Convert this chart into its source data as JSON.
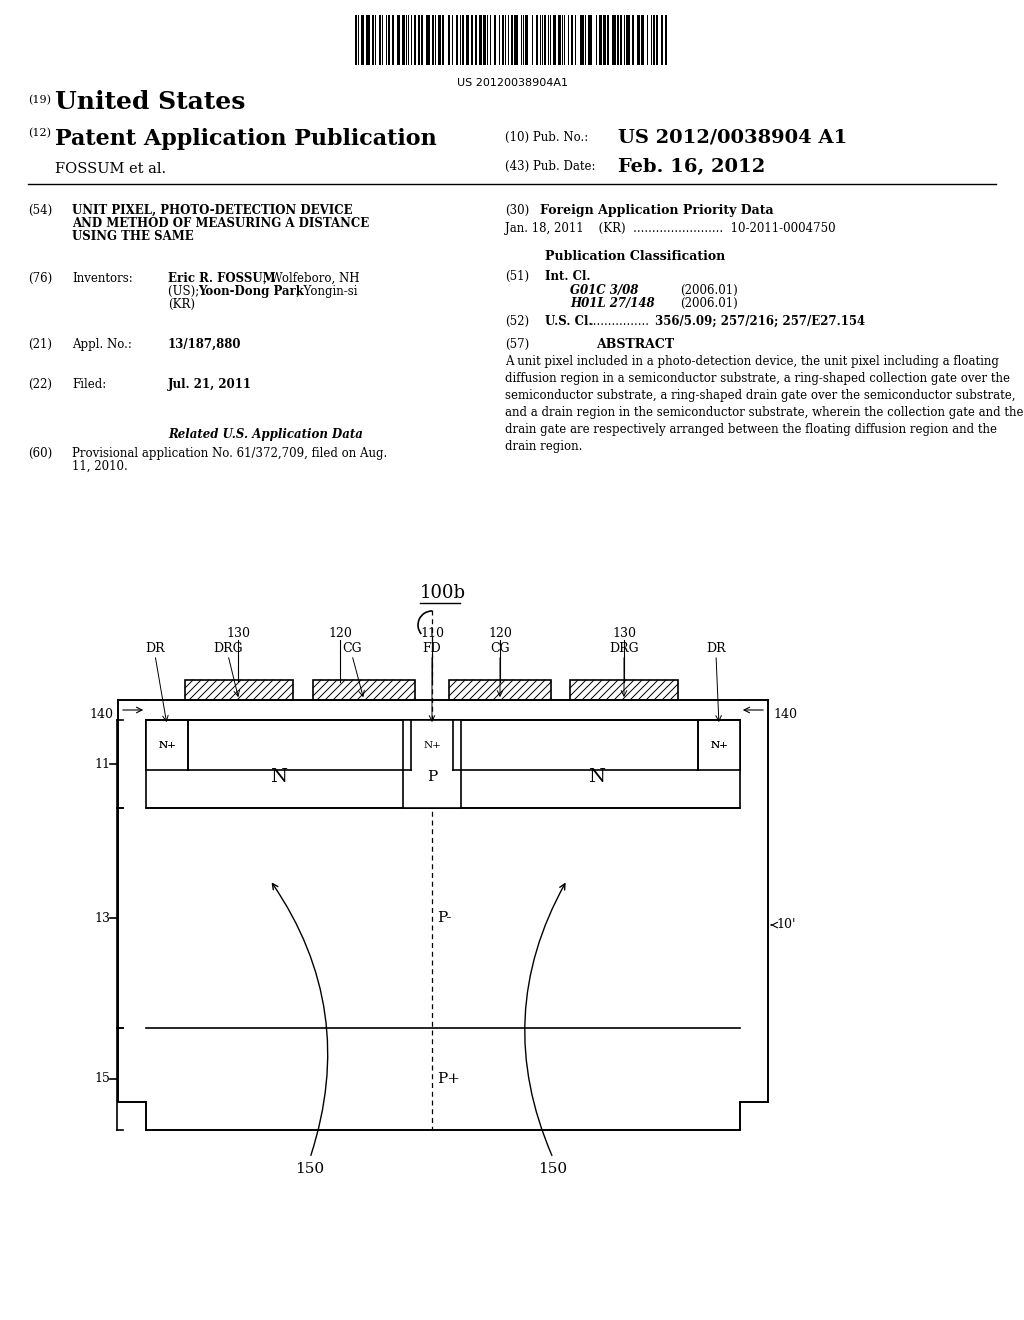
{
  "bg_color": "#ffffff",
  "barcode_text": "US 20120038904A1",
  "header_line1_num": "(19)",
  "header_line1_text": "United States",
  "header_line2_num": "(12)",
  "header_line2_text": "Patent Application Publication",
  "header_line2_right_num": "(10)",
  "header_line2_right_label": "Pub. No.:",
  "header_line2_right_value": "US 2012/0038904 A1",
  "header_line3_left": "FOSSUM et al.",
  "header_line3_right_num": "(43)",
  "header_line3_right_label": "Pub. Date:",
  "header_line3_right_value": "Feb. 16, 2012",
  "field54_num": "(54)",
  "field54_line1": "UNIT PIXEL, PHOTO-DETECTION DEVICE",
  "field54_line2": "AND METHOD OF MEASURING A DISTANCE",
  "field54_line3": "USING THE SAME",
  "field30_num": "(30)",
  "field30_label": "Foreign Application Priority Data",
  "field30_data": "Jan. 18, 2011    (KR)  ........................  10-2011-0004750",
  "field_pub_class_title": "Publication Classification",
  "field51_num": "(51)",
  "field51_label": "Int. Cl.",
  "field51_data1_italic": "G01C 3/08",
  "field51_data1_year": "(2006.01)",
  "field51_data2_italic": "H01L 27/148",
  "field51_data2_year": "(2006.01)",
  "field52_num": "(52)",
  "field52_label": "U.S. Cl.",
  "field52_dots": "................",
  "field52_data": "356/5.09; 257/216; 257/E27.154",
  "field57_num": "(57)",
  "field57_label": "ABSTRACT",
  "abstract_text": "A unit pixel included in a photo-detection device, the unit pixel including a floating diffusion region in a semiconductor substrate, a ring-shaped collection gate over the semiconductor substrate, a ring-shaped drain gate over the semiconductor substrate, and a drain region in the semiconductor substrate, wherein the collection gate and the drain gate are respectively arranged between the floating diffusion region and the drain region.",
  "field76_num": "(76)",
  "field76_label": "Inventors:",
  "field76_bold1": "Eric R. FOSSUM",
  "field76_normal1": ", Wolfeboro, NH",
  "field76_line2a": "(US); ",
  "field76_bold2": "Yoon-Dong Park",
  "field76_normal2": ", Yongin-si",
  "field76_line3": "(KR)",
  "field21_num": "(21)",
  "field21_label": "Appl. No.:",
  "field21_data": "13/187,880",
  "field22_num": "(22)",
  "field22_label": "Filed:",
  "field22_data": "Jul. 21, 2011",
  "related_title": "Related U.S. Application Data",
  "field60_num": "(60)",
  "field60_line1": "Provisional application No. 61/372,709, filed on Aug.",
  "field60_line2": "11, 2010."
}
